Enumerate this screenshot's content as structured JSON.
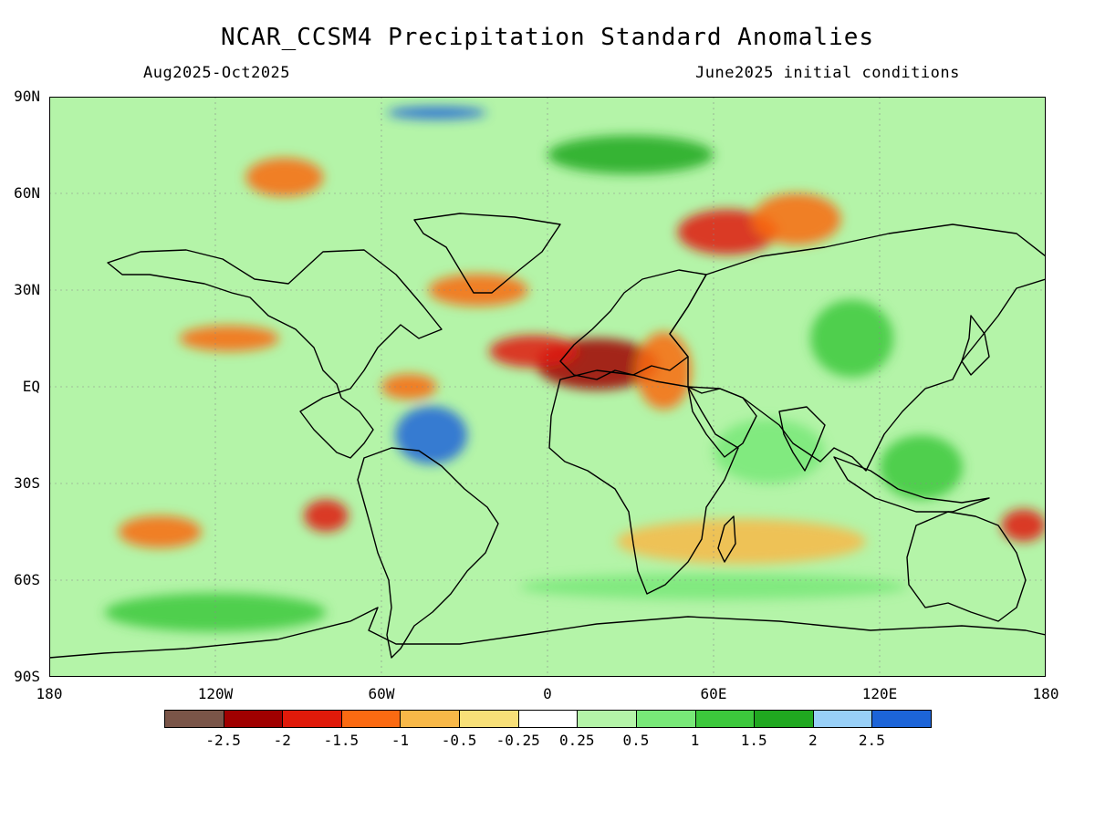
{
  "header": {
    "title": "NCAR_CCSM4 Precipitation Standard Anomalies",
    "period": "Aug2025-Oct2025",
    "init": "June2025 initial conditions"
  },
  "axes": {
    "lat_labels": [
      "90N",
      "60N",
      "30N",
      "EQ",
      "30S",
      "60S",
      "90S"
    ],
    "lon_labels": [
      "180",
      "120W",
      "60W",
      "0",
      "60E",
      "120E",
      "180"
    ]
  },
  "colorbar": {
    "colors": [
      "#7a5548",
      "#a00000",
      "#e01a0a",
      "#fa6a12",
      "#f8b848",
      "#f8e078",
      "#ffffff",
      "#b4f4a8",
      "#78e878",
      "#3cc83c",
      "#20a820",
      "#98d0f8",
      "#1c64d8"
    ],
    "labels": [
      "-2.5",
      "-2",
      "-1.5",
      "-1",
      "-0.5",
      "-0.25",
      "0.25",
      "0.5",
      "1",
      "1.5",
      "2",
      "2.5"
    ]
  },
  "map_features": [
    {
      "name": "Central Africa dry anomaly",
      "color": "#a00000",
      "lon": 18,
      "lat": 7,
      "rx": 22,
      "ry": 8
    },
    {
      "name": "Sahel dry anomaly",
      "color": "#e01a0a",
      "lon": -5,
      "lat": 11,
      "rx": 16,
      "ry": 5
    },
    {
      "name": "East Africa dry anomaly",
      "color": "#fa6a12",
      "lon": 42,
      "lat": 5,
      "rx": 10,
      "ry": 12
    },
    {
      "name": "North Atlantic dry band",
      "color": "#fa6a12",
      "lon": -25,
      "lat": 30,
      "rx": 18,
      "ry": 5
    },
    {
      "name": "Eastern Europe dry anomaly",
      "color": "#e01a0a",
      "lon": 65,
      "lat": 48,
      "rx": 18,
      "ry": 7
    },
    {
      "name": "Central Asia dry anomaly",
      "color": "#fa6a12",
      "lon": 90,
      "lat": 52,
      "rx": 16,
      "ry": 8
    },
    {
      "name": "Canada dry anomaly",
      "color": "#fa6a12",
      "lon": -95,
      "lat": 65,
      "rx": 14,
      "ry": 6
    },
    {
      "name": "Tropical Pacific dry anomaly",
      "color": "#fa6a12",
      "lon": -115,
      "lat": 15,
      "rx": 18,
      "ry": 4
    },
    {
      "name": "Amazon dry anomaly",
      "color": "#fa6a12",
      "lon": -50,
      "lat": 0,
      "rx": 10,
      "ry": 4
    },
    {
      "name": "Southern Ocean dry band",
      "color": "#f8b848",
      "lon": 70,
      "lat": -48,
      "rx": 45,
      "ry": 7
    },
    {
      "name": "Tasman Sea dry anomaly",
      "color": "#e01a0a",
      "lon": 172,
      "lat": -43,
      "rx": 8,
      "ry": 5
    },
    {
      "name": "South Pacific dry anomaly",
      "color": "#fa6a12",
      "lon": -140,
      "lat": -45,
      "rx": 15,
      "ry": 5
    },
    {
      "name": "Southern Chile dry anomaly",
      "color": "#e01a0a",
      "lon": -80,
      "lat": -40,
      "rx": 8,
      "ry": 5
    },
    {
      "name": "South America wet anomaly",
      "color": "#1c64d8",
      "lon": -42,
      "lat": -15,
      "rx": 13,
      "ry": 9
    },
    {
      "name": "Greenland Sea wet anomaly",
      "color": "#1c64d8",
      "lon": -40,
      "lat": 85,
      "rx": 18,
      "ry": 2
    },
    {
      "name": "Southeast Asia wet anomaly",
      "color": "#3cc83c",
      "lon": 110,
      "lat": 15,
      "rx": 15,
      "ry": 12
    },
    {
      "name": "Australia wet anomaly",
      "color": "#3cc83c",
      "lon": 135,
      "lat": -25,
      "rx": 15,
      "ry": 10
    },
    {
      "name": "Arctic wet anomaly",
      "color": "#20a820",
      "lon": 30,
      "lat": 72,
      "rx": 30,
      "ry": 6
    },
    {
      "name": "Antarctic wet band",
      "color": "#3cc83c",
      "lon": -120,
      "lat": -70,
      "rx": 40,
      "ry": 6
    },
    {
      "name": "Southern Ocean wet band",
      "color": "#78e878",
      "lon": 60,
      "lat": -62,
      "rx": 70,
      "ry": 4
    },
    {
      "name": "Indian Ocean wet anomaly",
      "color": "#78e878",
      "lon": 80,
      "lat": -20,
      "rx": 20,
      "ry": 10
    }
  ]
}
